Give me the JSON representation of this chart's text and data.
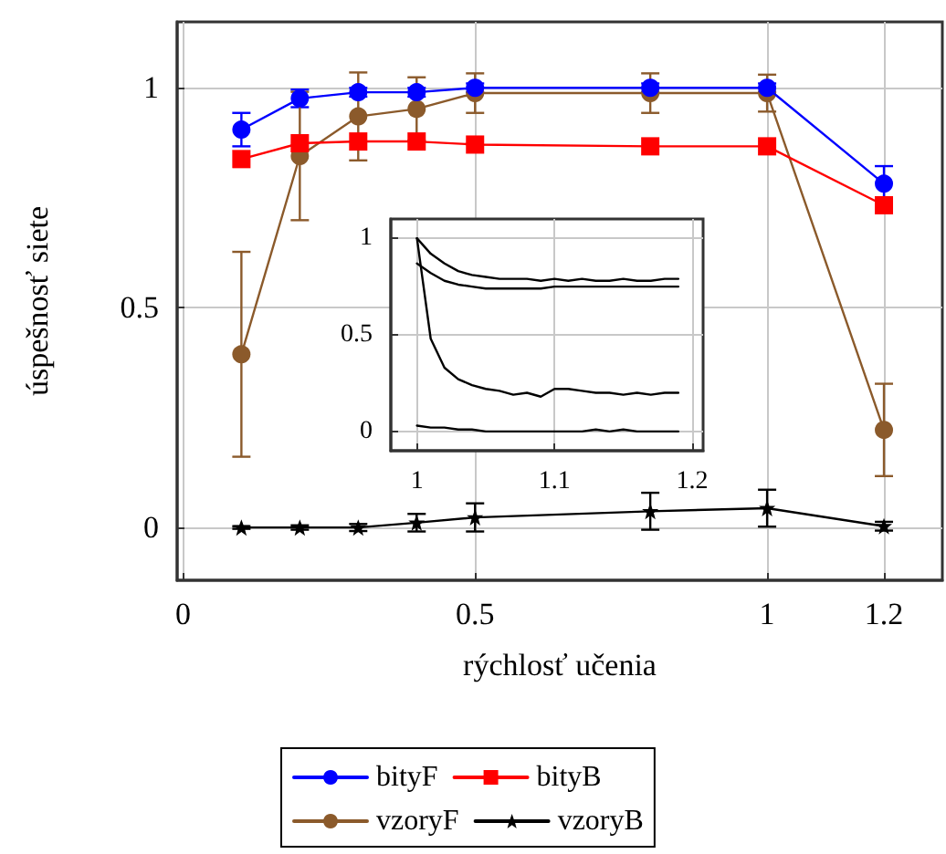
{
  "chart_data": [
    {
      "type": "line",
      "xlabel": "rýchlosť učenia",
      "ylabel": "úspešnosť siete",
      "x": [
        0.1,
        0.2,
        0.3,
        0.4,
        0.5,
        0.8,
        1.0,
        1.2
      ],
      "series": [
        {
          "name": "bityF",
          "color": "#0000ff",
          "marker": "circle",
          "values": [
            0.905,
            0.976,
            0.99,
            0.99,
            1.0,
            1.0,
            1.0,
            0.782
          ],
          "errors": [
            0.038,
            0.02,
            0.01,
            0.01,
            0.01,
            0.01,
            0.01,
            0.04
          ]
        },
        {
          "name": "bityB",
          "color": "#ff0000",
          "marker": "square",
          "values": [
            0.838,
            0.874,
            0.878,
            0.878,
            0.871,
            0.867,
            0.867,
            0.733
          ]
        },
        {
          "name": "vzoryF",
          "color": "#8b5a2b",
          "marker": "circle",
          "values": [
            0.394,
            0.845,
            0.935,
            0.952,
            0.988,
            0.988,
            0.988,
            0.222
          ],
          "errors": [
            0.233,
            0.146,
            0.1,
            0.072,
            0.045,
            0.045,
            0.042,
            0.105
          ]
        },
        {
          "name": "vzoryB",
          "color": "#000000",
          "marker": "star",
          "values": [
            0,
            0,
            0,
            0.011,
            0.023,
            0.037,
            0.044,
            0.003
          ],
          "errors": [
            0.003,
            0.005,
            0.008,
            0.02,
            0.032,
            0.042,
            0.042,
            0.01
          ]
        }
      ],
      "xlim": [
        -0.01,
        1.3
      ],
      "xticks": [
        0,
        0.5,
        1,
        1.2
      ],
      "ylim": [
        -0.12,
        1.15
      ],
      "yticks": [
        0,
        0.5,
        1
      ],
      "grid": true,
      "legend": "bottom",
      "line_style": "solid"
    },
    {
      "type": "line",
      "x": [
        1.0,
        1.01,
        1.02,
        1.03,
        1.04,
        1.05,
        1.06,
        1.07,
        1.08,
        1.09,
        1.1,
        1.11,
        1.12,
        1.13,
        1.14,
        1.15,
        1.16,
        1.17,
        1.18,
        1.19
      ],
      "series": [
        {
          "color": "#000000",
          "values": [
            1.0,
            0.92,
            0.87,
            0.83,
            0.81,
            0.8,
            0.79,
            0.79,
            0.79,
            0.78,
            0.79,
            0.78,
            0.79,
            0.78,
            0.78,
            0.79,
            0.78,
            0.78,
            0.79,
            0.79
          ]
        },
        {
          "color": "#000000",
          "values": [
            0.87,
            0.82,
            0.78,
            0.76,
            0.75,
            0.74,
            0.74,
            0.74,
            0.74,
            0.74,
            0.75,
            0.75,
            0.75,
            0.75,
            0.75,
            0.75,
            0.75,
            0.75,
            0.75,
            0.75
          ]
        },
        {
          "color": "#000000",
          "values": [
            1.0,
            0.48,
            0.33,
            0.27,
            0.24,
            0.22,
            0.21,
            0.19,
            0.2,
            0.18,
            0.22,
            0.22,
            0.21,
            0.2,
            0.2,
            0.19,
            0.2,
            0.19,
            0.2,
            0.2
          ]
        },
        {
          "color": "#000000",
          "values": [
            0.03,
            0.02,
            0.02,
            0.01,
            0.01,
            0,
            0,
            0,
            0,
            0,
            0,
            0,
            0,
            0.01,
            0,
            0.01,
            0,
            0,
            0,
            0
          ]
        }
      ],
      "xlim": [
        0.981,
        1.208
      ],
      "xticks": [
        1,
        1.1,
        1.2
      ],
      "ylim": [
        -0.1,
        1.1
      ],
      "yticks": [
        0,
        0.5,
        1
      ],
      "grid": true,
      "legend": false,
      "marker": "none",
      "line_style": "solid"
    }
  ]
}
